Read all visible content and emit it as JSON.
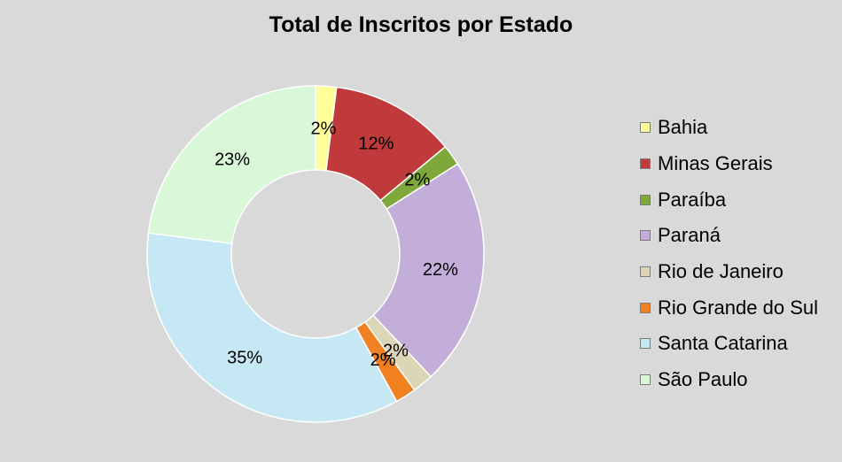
{
  "chart_data": {
    "type": "pie",
    "title": "Total de Inscritos por Estado",
    "donut": true,
    "legend_position": "right",
    "categories": [
      "Bahia",
      "Minas Gerais",
      "Paraíba",
      "Paraná",
      "Rio de Janeiro",
      "Rio Grande do Sul",
      "Santa Catarina",
      "São Paulo"
    ],
    "values": [
      2,
      12,
      2,
      22,
      2,
      2,
      35,
      23
    ],
    "labels": [
      "2%",
      "12%",
      "2%",
      "22%",
      "2%",
      "2%",
      "35%",
      "23%"
    ],
    "colors": [
      "#ffff99",
      "#c0393b",
      "#7ea83a",
      "#c2aed8",
      "#ddd6b6",
      "#f08020",
      "#c6e8f4",
      "#d8f8d8"
    ]
  }
}
